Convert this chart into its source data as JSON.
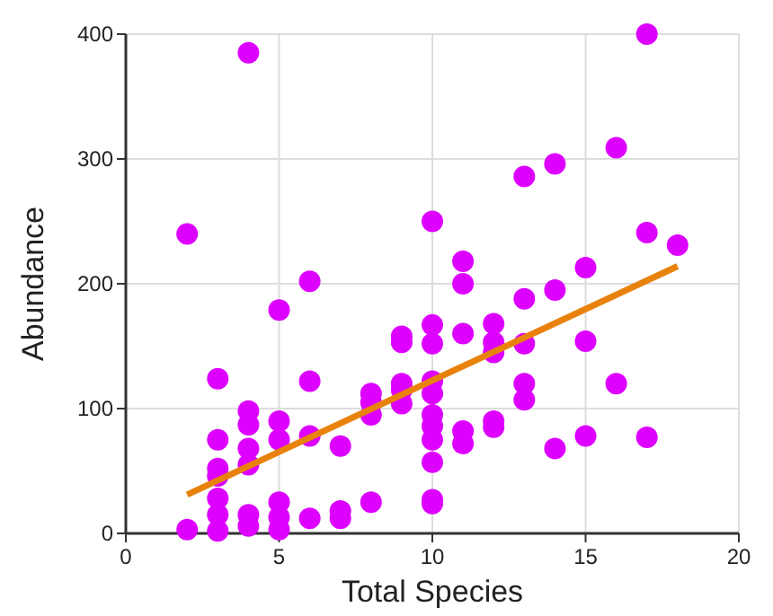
{
  "chart_data": {
    "type": "scatter",
    "xlabel": "Total Species",
    "ylabel": "Abundance",
    "xlim": [
      0,
      20
    ],
    "xticks": [
      0,
      5,
      10,
      15,
      20
    ],
    "ylim": [
      0,
      400
    ],
    "yticks": [
      0,
      100,
      200,
      300,
      400
    ],
    "grid": true,
    "marker": "circle",
    "series": [
      {
        "color": "#dd00ff",
        "x": [
          2,
          2,
          3,
          3,
          3,
          3,
          3,
          3,
          3,
          4,
          4,
          4,
          4,
          4,
          4,
          4,
          5,
          5,
          5,
          5,
          5,
          5,
          6,
          6,
          6,
          6,
          7,
          7,
          7,
          8,
          8,
          8,
          8,
          9,
          9,
          9,
          9,
          9,
          10,
          10,
          10,
          10,
          10,
          10,
          10,
          10,
          10,
          10,
          10,
          11,
          11,
          11,
          11,
          11,
          12,
          12,
          12,
          12,
          12,
          13,
          13,
          13,
          13,
          13,
          14,
          14,
          14,
          15,
          15,
          15,
          16,
          16,
          17,
          17,
          17,
          18
        ],
        "values": [
          240,
          3,
          124,
          75,
          52,
          46,
          28,
          15,
          2,
          385,
          98,
          87,
          68,
          55,
          15,
          6,
          179,
          90,
          75,
          25,
          13,
          3,
          202,
          122,
          78,
          12,
          70,
          18,
          12,
          112,
          105,
          95,
          25,
          158,
          153,
          120,
          115,
          104,
          250,
          167,
          152,
          122,
          112,
          95,
          86,
          75,
          57,
          27,
          24,
          218,
          200,
          160,
          82,
          72,
          168,
          153,
          145,
          90,
          85,
          286,
          188,
          152,
          120,
          107,
          296,
          195,
          68,
          213,
          154,
          78,
          309,
          120,
          400,
          241,
          77,
          231
        ]
      },
      {
        "type": "line",
        "color": "#e8820c",
        "marker": "none",
        "x": [
          2,
          18
        ],
        "values": [
          31,
          214
        ]
      }
    ]
  }
}
